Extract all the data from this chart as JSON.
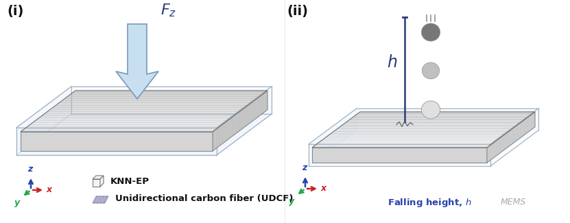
{
  "bg_color": "#ffffff",
  "label_i": "(i)",
  "label_ii": "(ii)",
  "fz_label": "$\\mathbf{\\mathit{F_z}}$",
  "h_label": "$\\mathbf{\\mathit{h}}$",
  "falling_label": "Falling height, $\\mathit{h}$",
  "knn_ep_label": "KNN-EP",
  "udcf_label": "Unidirectional carbon fiber (UDCF)",
  "mems_label": "MEMS",
  "arrow_color_light": "#c8dff0",
  "arrow_color_mid": "#a0c4e0",
  "arrow_edge_color": "#7799bb",
  "glass_edge_color": "#99aabb",
  "glass_face_color": "#e8f0f8",
  "slab_top_color": "#e0e0e0",
  "slab_right_color": "#c8c8c8",
  "slab_front_color": "#d8d8d8",
  "fiber_color_a": "#aaaaaa",
  "fiber_color_b": "#c0c0c0",
  "h_line_color": "#2a3a7a",
  "ball_colors": [
    "#777777",
    "#c0c0c0",
    "#e0e0e0"
  ],
  "axis_z_color": "#2244aa",
  "axis_y_color": "#22aa44",
  "axis_x_color": "#cc2222",
  "fz_color": "#2a3a8a"
}
